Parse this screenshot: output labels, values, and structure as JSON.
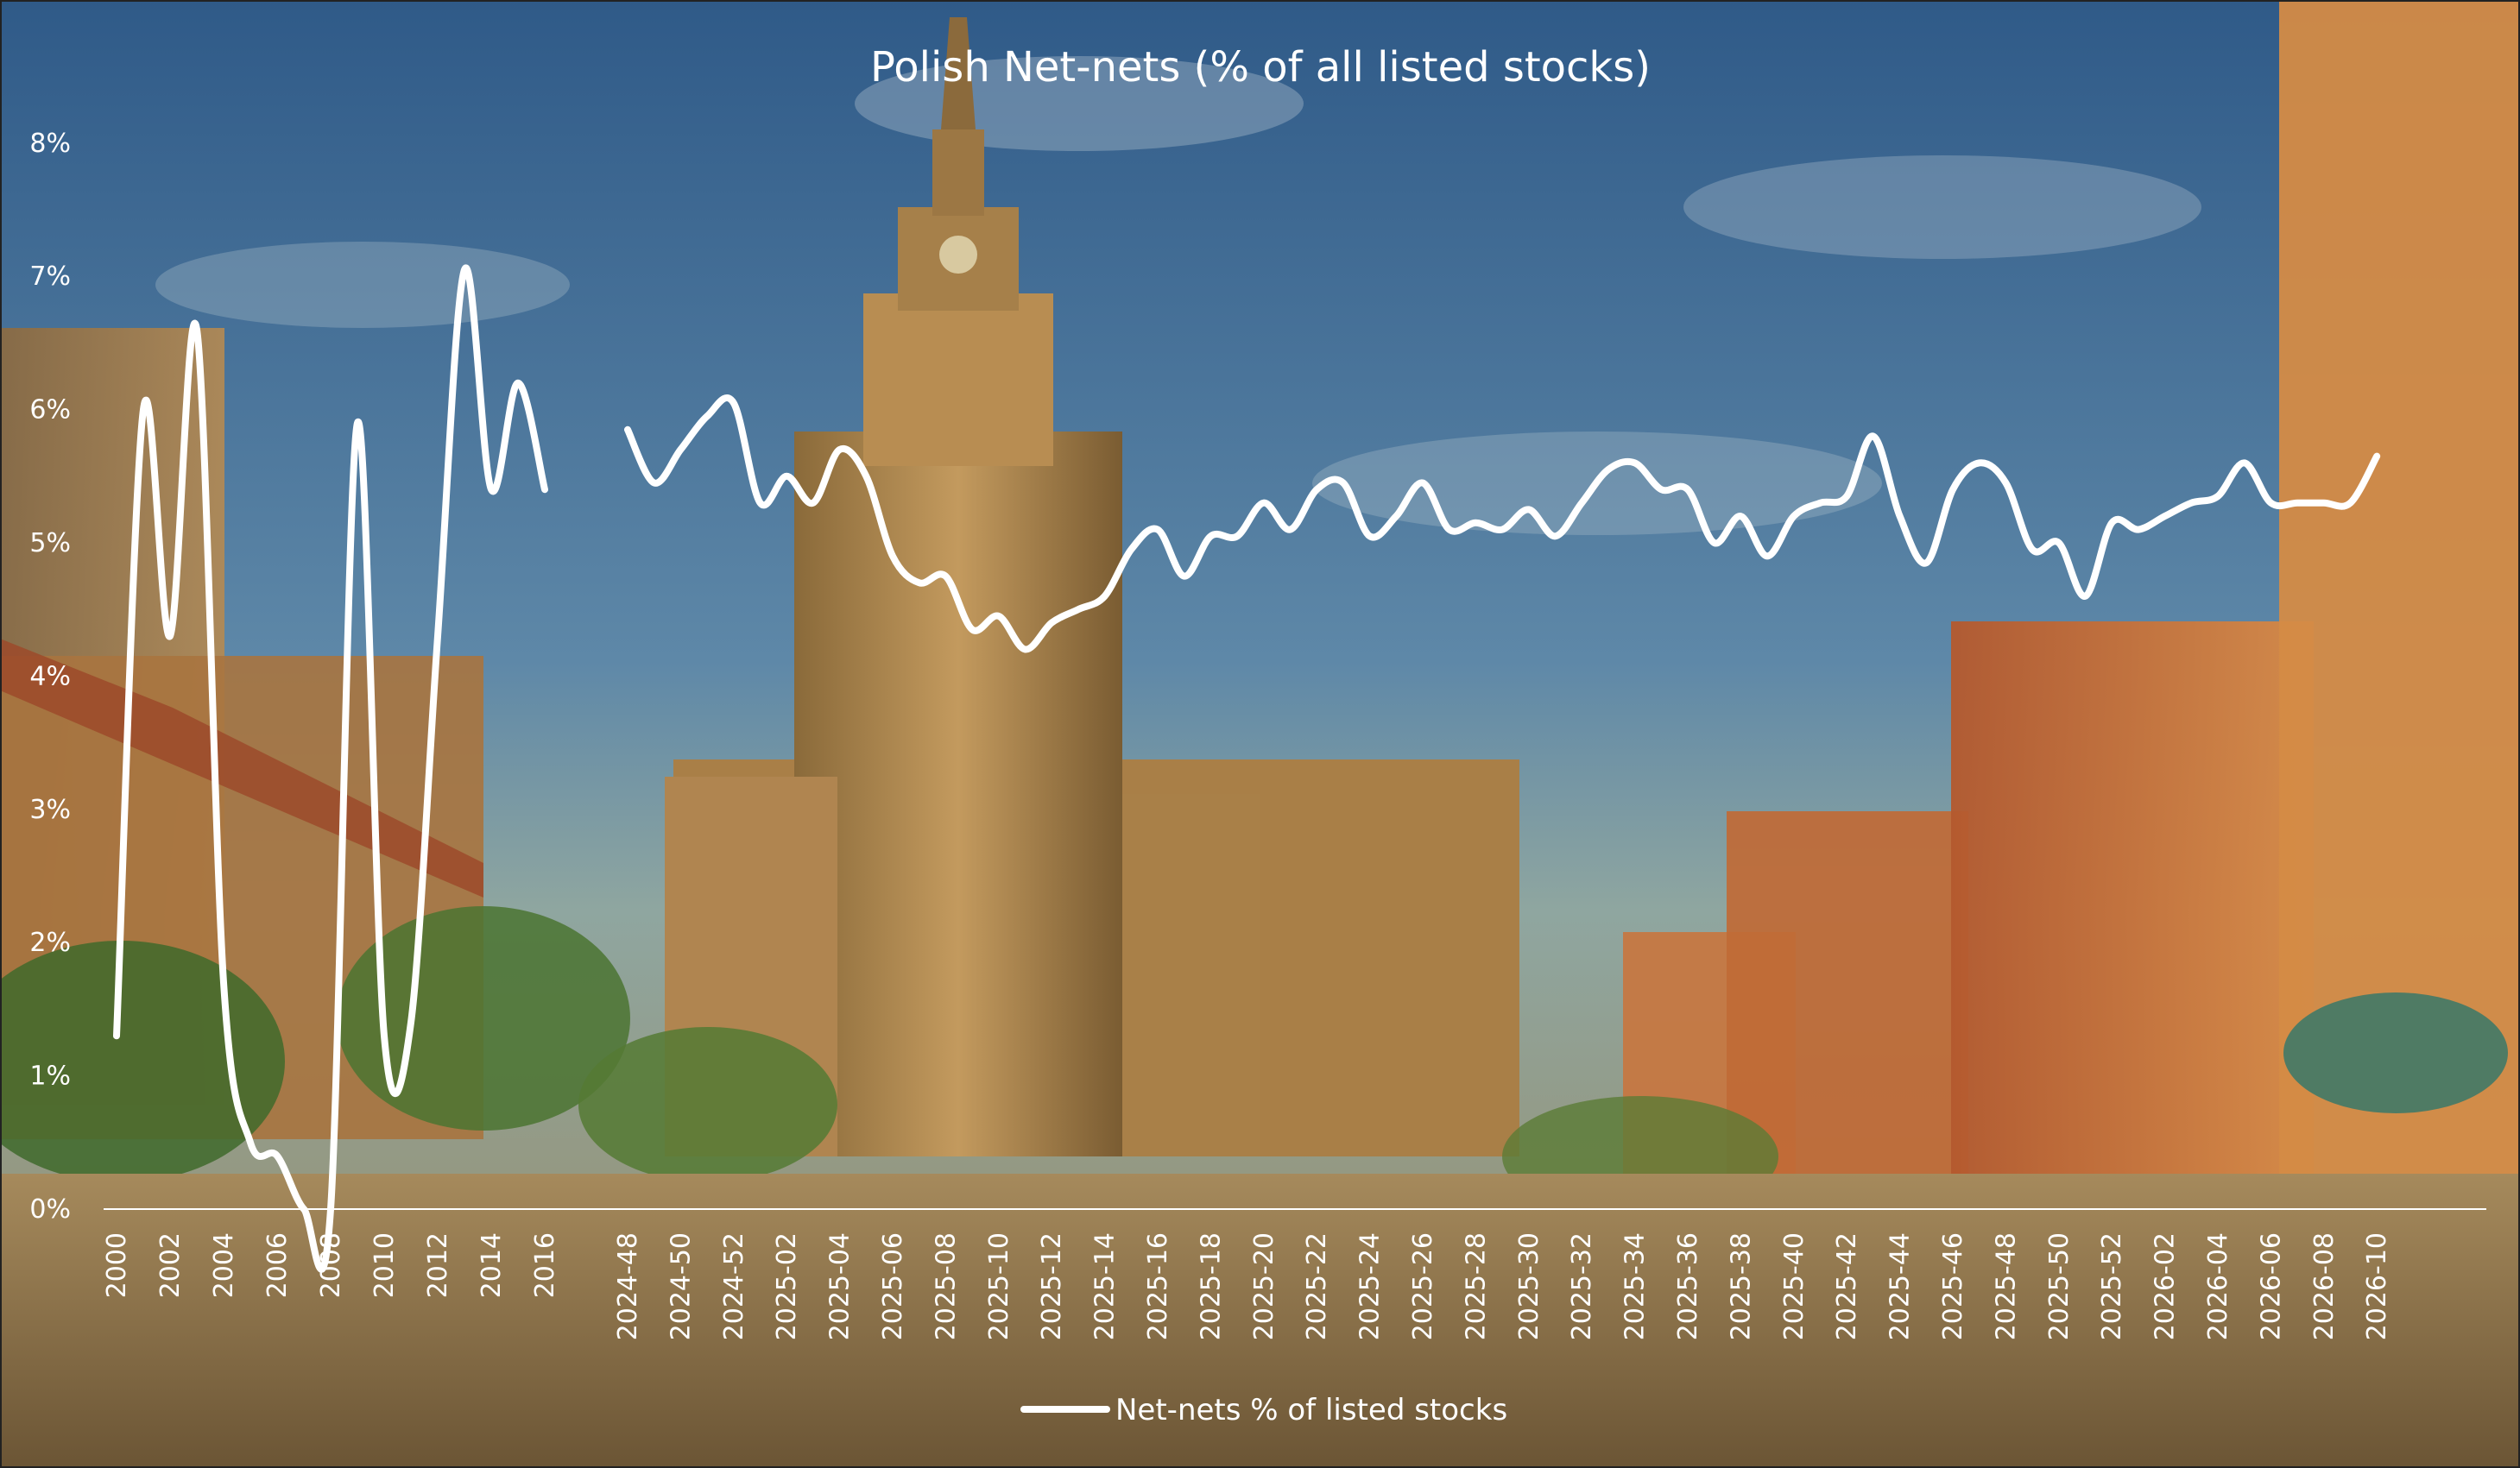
{
  "chart_data": {
    "type": "line",
    "title": "Polish Net-nets (% of all listed stocks)",
    "legend": {
      "position": "bottom",
      "entries": [
        "Net-nets % of listed stocks"
      ]
    },
    "ylim": [
      0,
      8
    ],
    "y_ticks": [
      "0%",
      "1%",
      "2%",
      "3%",
      "4%",
      "5%",
      "6%",
      "7%",
      "8%"
    ],
    "grid": false,
    "line_color": "#ffffff",
    "background": "painting of Warsaw Palace of Culture and Science with old town buildings",
    "x_labels": [
      "2000",
      "2002",
      "2004",
      "2006",
      "2008",
      "2010",
      "2012",
      "2014",
      "2016",
      "2024-48",
      "2024-50",
      "2024-52",
      "2025-02",
      "2025-04",
      "2025-06",
      "2025-08",
      "2025-10",
      "2025-12",
      "2025-14",
      "2025-16",
      "2025-18",
      "2025-20",
      "2025-22",
      "2025-24",
      "2025-26",
      "2025-28",
      "2025-30",
      "2025-32",
      "2025-34",
      "2025-36",
      "2025-38",
      "2025-40",
      "2025-42",
      "2025-44",
      "2025-46",
      "2025-48",
      "2025-50",
      "2025-52",
      "2026-02",
      "2026-04",
      "2026-06",
      "2026-08",
      "2026-10"
    ],
    "series": [
      {
        "name": "Net-nets % of listed stocks",
        "segments": [
          {
            "x": [
              "2000",
              "2001",
              "2002",
              "2003",
              "2004",
              "2005",
              "2006",
              "2007",
              "2008",
              "2009",
              "2010",
              "2011",
              "2012",
              "2013",
              "2014",
              "2015",
              "2016"
            ],
            "y": [
              1.3,
              6.0,
              4.3,
              6.6,
              1.7,
              0.5,
              0.4,
              0.0,
              0.0,
              5.9,
              1.3,
              1.4,
              4.3,
              7.05,
              5.4,
              6.2,
              5.4
            ]
          },
          {
            "x": [
              "2024-48",
              "2024-49",
              "2024-50",
              "2024-51",
              "2024-52",
              "2025-01",
              "2025-02",
              "2025-03",
              "2025-04",
              "2025-05",
              "2025-06",
              "2025-07",
              "2025-08",
              "2025-09",
              "2025-10",
              "2025-11",
              "2025-12",
              "2025-13",
              "2025-14",
              "2025-15",
              "2025-16",
              "2025-17",
              "2025-18",
              "2025-19",
              "2025-20",
              "2025-21",
              "2025-22",
              "2025-23",
              "2025-24",
              "2025-25",
              "2025-26",
              "2025-27",
              "2025-28",
              "2025-29",
              "2025-30",
              "2025-31",
              "2025-32",
              "2025-33",
              "2025-34",
              "2025-35",
              "2025-36",
              "2025-37",
              "2025-38",
              "2025-39",
              "2025-40",
              "2025-41",
              "2025-42",
              "2025-43",
              "2025-44",
              "2025-45",
              "2025-46",
              "2025-47",
              "2025-48",
              "2025-49",
              "2025-50",
              "2025-51",
              "2025-52",
              "2026-01",
              "2026-02",
              "2026-03",
              "2026-04",
              "2026-05",
              "2026-06",
              "2026-07",
              "2026-08",
              "2026-09",
              "2026-10"
            ],
            "y": [
              5.85,
              5.45,
              5.7,
              5.95,
              6.05,
              5.3,
              5.5,
              5.3,
              5.7,
              5.5,
              4.9,
              4.7,
              4.75,
              4.35,
              4.45,
              4.2,
              4.4,
              4.5,
              4.6,
              4.95,
              5.1,
              4.75,
              5.05,
              5.05,
              5.3,
              5.1,
              5.4,
              5.45,
              5.05,
              5.2,
              5.45,
              5.1,
              5.15,
              5.1,
              5.25,
              5.05,
              5.3,
              5.55,
              5.6,
              5.4,
              5.4,
              5.0,
              5.2,
              4.9,
              5.2,
              5.3,
              5.35,
              5.8,
              5.2,
              4.85,
              5.4,
              5.6,
              5.45,
              4.95,
              5.0,
              4.6,
              5.15,
              5.1,
              5.2,
              5.3,
              5.35,
              5.6,
              5.3,
              5.3,
              5.3,
              5.3,
              5.65
            ]
          }
        ]
      }
    ]
  }
}
